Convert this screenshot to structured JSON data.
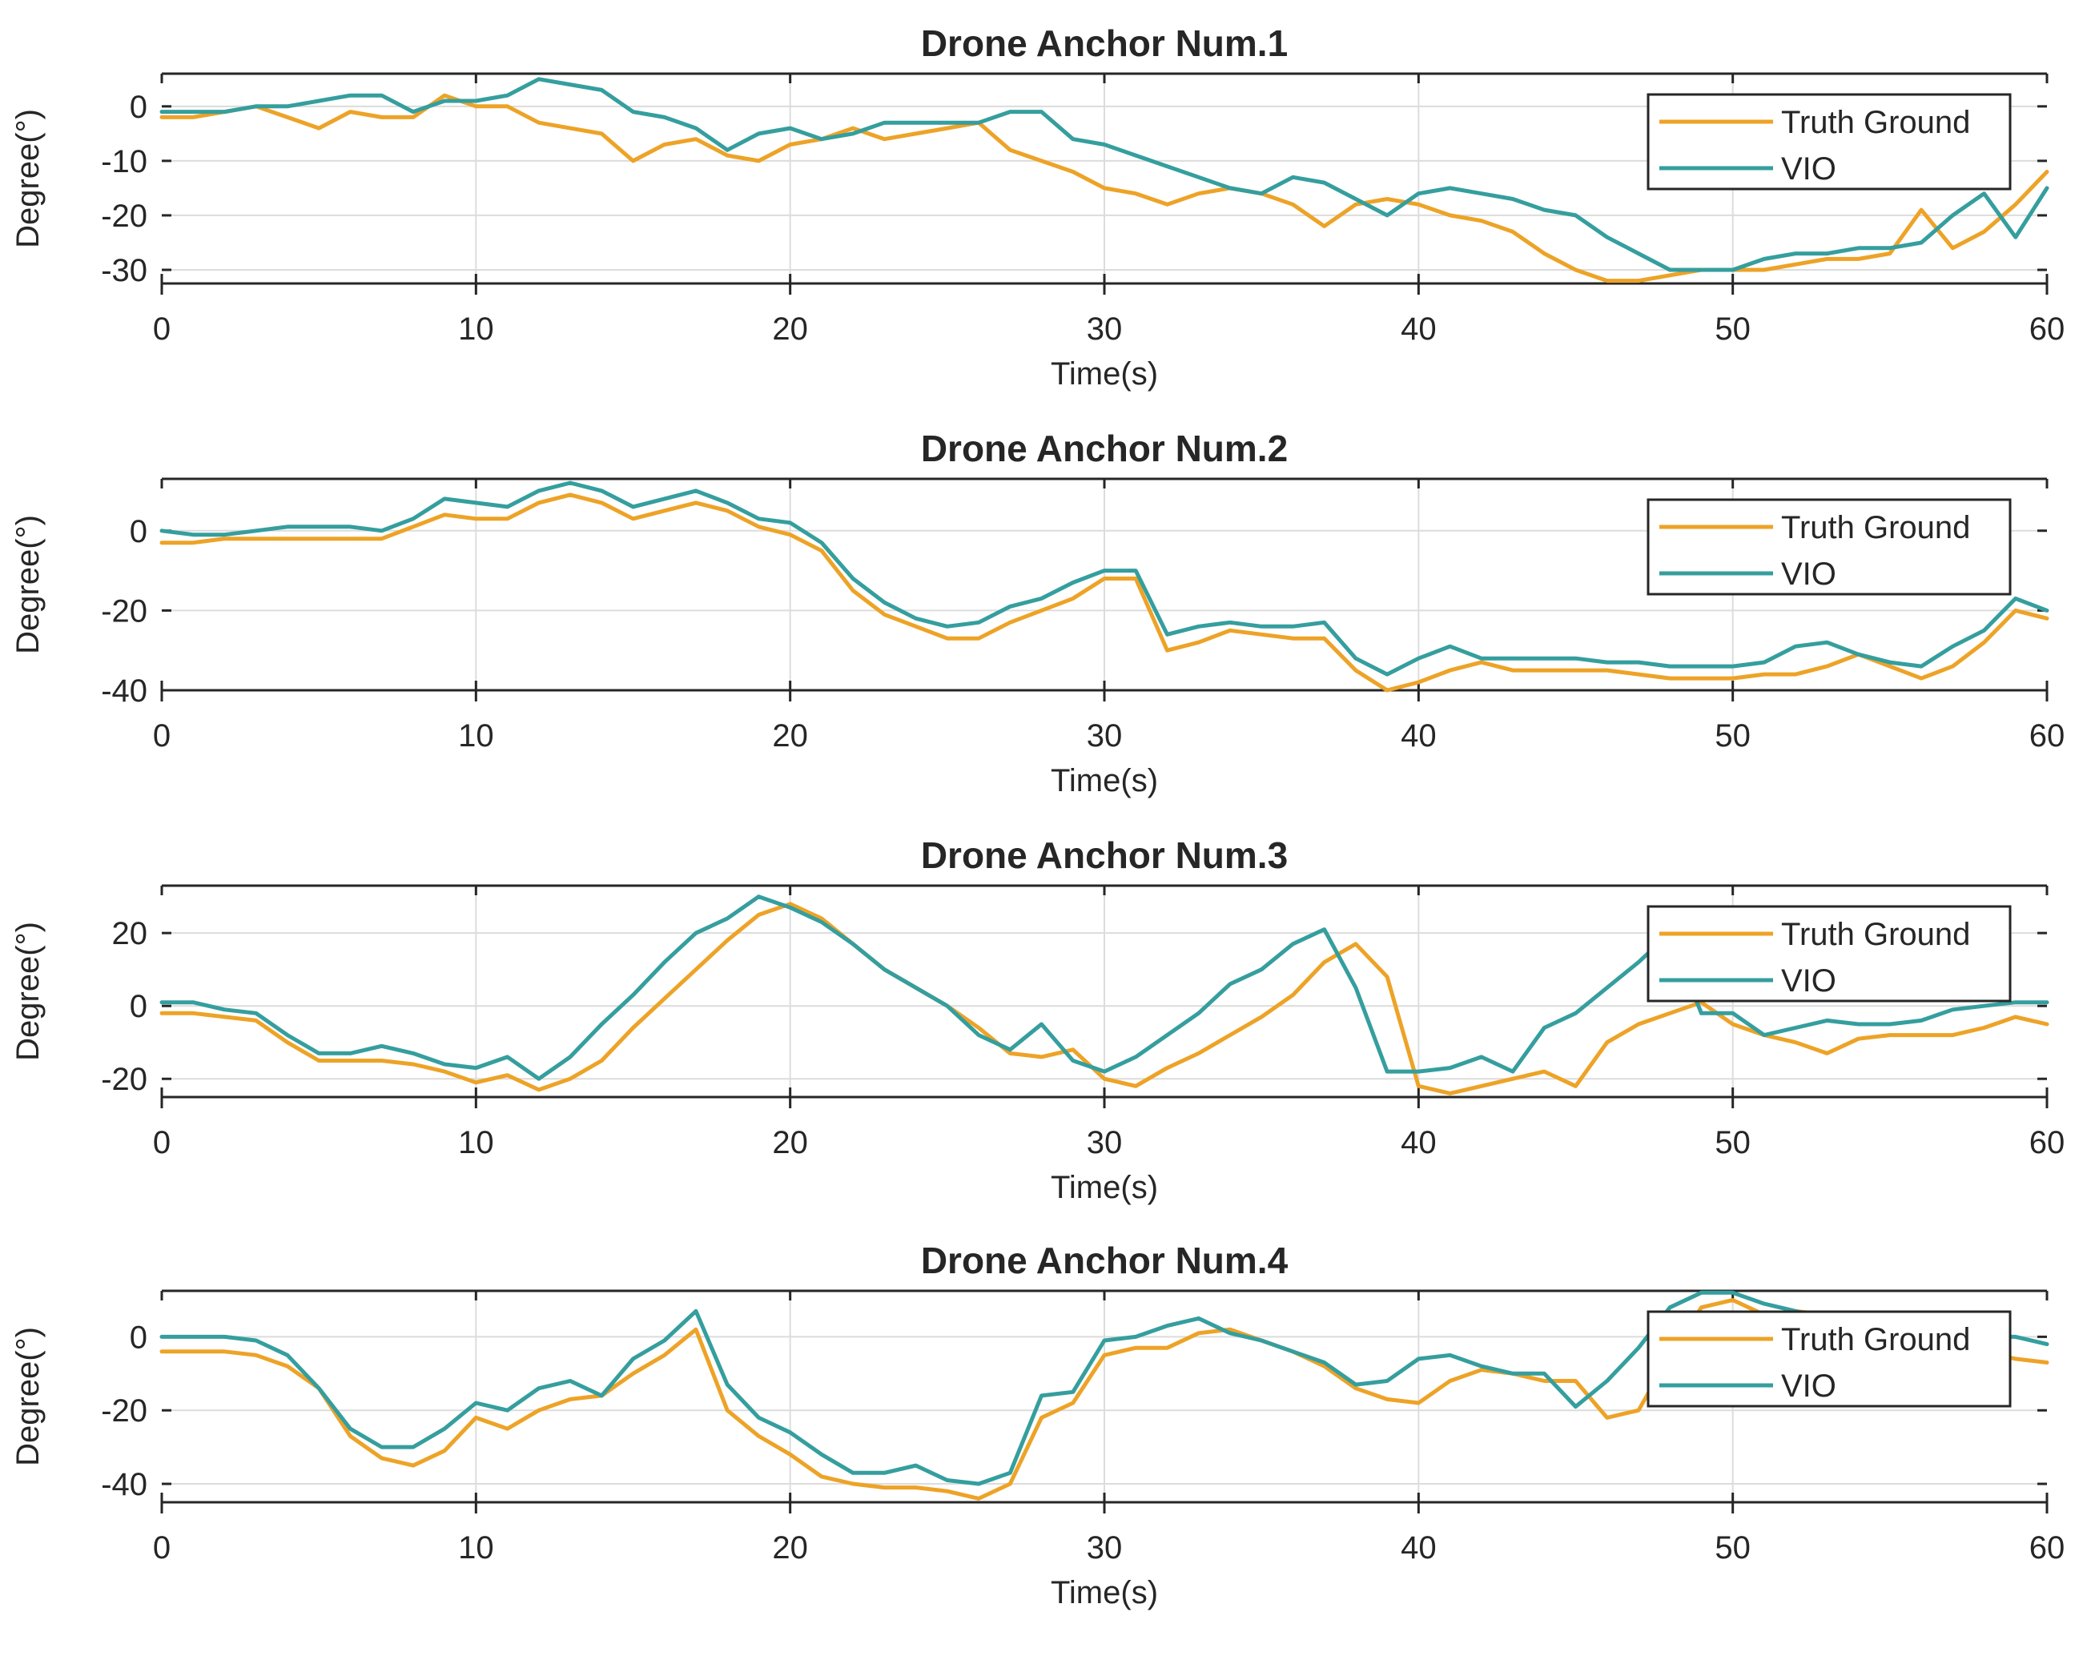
{
  "colors": {
    "truth": "#EDA327",
    "vio": "#359E9E",
    "axis": "#262626",
    "grid": "#dcdcdc"
  },
  "chart_data": [
    {
      "type": "line",
      "title": "Drone Anchor Num.1",
      "xlabel": "Time(s)",
      "ylabel": "Degree(°)",
      "xlim": [
        0,
        60
      ],
      "ylim": [
        -32.5,
        6
      ],
      "xticks": [
        0,
        10,
        20,
        30,
        40,
        50,
        60
      ],
      "xtick_labels": [
        "0",
        "10",
        "20",
        "30",
        "40",
        "50",
        "60"
      ],
      "yticks": [
        0,
        -10,
        -20,
        -30
      ],
      "ytick_labels": [
        "0",
        "-10",
        "-20",
        "-30"
      ],
      "grid": true,
      "legend_position": "top-right",
      "series": [
        {
          "name": "Truth Ground",
          "color": "#EDA327",
          "x": [
            0,
            1,
            2,
            3,
            4,
            5,
            6,
            7,
            8,
            9,
            10,
            11,
            12,
            13,
            14,
            15,
            16,
            17,
            18,
            19,
            20,
            21,
            22,
            23,
            24,
            25,
            26,
            27,
            28,
            29,
            30,
            31,
            32,
            33,
            34,
            35,
            36,
            37,
            38,
            39,
            40,
            41,
            42,
            43,
            44,
            45,
            46,
            47,
            48,
            49,
            50,
            51,
            52,
            53,
            54,
            55,
            56,
            57,
            58,
            59,
            60
          ],
          "y": [
            -2,
            -2,
            -1,
            0,
            -2,
            -4,
            -1,
            -2,
            -2,
            2,
            0,
            0,
            -3,
            -4,
            -5,
            -10,
            -7,
            -6,
            -9,
            -10,
            -7,
            -6,
            -4,
            -6,
            -5,
            -4,
            -3,
            -8,
            -10,
            -12,
            -15,
            -16,
            -18,
            -16,
            -15,
            -16,
            -18,
            -22,
            -18,
            -17,
            -18,
            -20,
            -21,
            -23,
            -27,
            -30,
            -32,
            -32,
            -31,
            -30,
            -30,
            -30,
            -29,
            -28,
            -28,
            -27,
            -19,
            -26,
            -23,
            -18,
            -12
          ]
        },
        {
          "name": "VIO",
          "color": "#359E9E",
          "x": [
            0,
            1,
            2,
            3,
            4,
            5,
            6,
            7,
            8,
            9,
            10,
            11,
            12,
            13,
            14,
            15,
            16,
            17,
            18,
            19,
            20,
            21,
            22,
            23,
            24,
            25,
            26,
            27,
            28,
            29,
            30,
            31,
            32,
            33,
            34,
            35,
            36,
            37,
            38,
            39,
            40,
            41,
            42,
            43,
            44,
            45,
            46,
            47,
            48,
            49,
            50,
            51,
            52,
            53,
            54,
            55,
            56,
            57,
            58,
            59,
            60
          ],
          "y": [
            -1,
            -1,
            -1,
            0,
            0,
            1,
            2,
            2,
            -1,
            1,
            1,
            2,
            5,
            4,
            3,
            -1,
            -2,
            -4,
            -8,
            -5,
            -4,
            -6,
            -5,
            -3,
            -3,
            -3,
            -3,
            -1,
            -1,
            -6,
            -7,
            -9,
            -11,
            -13,
            -15,
            -16,
            -13,
            -14,
            -17,
            -20,
            -16,
            -15,
            -16,
            -17,
            -19,
            -20,
            -24,
            -27,
            -30,
            -30,
            -30,
            -28,
            -27,
            -27,
            -26,
            -26,
            -25,
            -20,
            -16,
            -24,
            -15
          ]
        }
      ]
    },
    {
      "type": "line",
      "title": "Drone Anchor Num.2",
      "xlabel": "Time(s)",
      "ylabel": "Degree(°)",
      "xlim": [
        0,
        60
      ],
      "ylim": [
        -40,
        13
      ],
      "xticks": [
        0,
        10,
        20,
        30,
        40,
        50,
        60
      ],
      "xtick_labels": [
        "0",
        "10",
        "20",
        "30",
        "40",
        "50",
        "60"
      ],
      "yticks": [
        0,
        -20,
        -40
      ],
      "ytick_labels": [
        "0",
        "-20",
        "-40"
      ],
      "grid": true,
      "legend_position": "top-right",
      "series": [
        {
          "name": "Truth Ground",
          "color": "#EDA327",
          "x": [
            0,
            1,
            2,
            3,
            4,
            5,
            6,
            7,
            8,
            9,
            10,
            11,
            12,
            13,
            14,
            15,
            16,
            17,
            18,
            19,
            20,
            21,
            22,
            23,
            24,
            25,
            26,
            27,
            28,
            29,
            30,
            31,
            32,
            33,
            34,
            35,
            36,
            37,
            38,
            39,
            40,
            41,
            42,
            43,
            44,
            45,
            46,
            47,
            48,
            49,
            50,
            51,
            52,
            53,
            54,
            55,
            56,
            57,
            58,
            59,
            60
          ],
          "y": [
            -3,
            -3,
            -2,
            -2,
            -2,
            -2,
            -2,
            -2,
            1,
            4,
            3,
            3,
            7,
            9,
            7,
            3,
            5,
            7,
            5,
            1,
            -1,
            -5,
            -15,
            -21,
            -24,
            -27,
            -27,
            -23,
            -20,
            -17,
            -12,
            -12,
            -30,
            -28,
            -25,
            -26,
            -27,
            -27,
            -35,
            -40,
            -38,
            -35,
            -33,
            -35,
            -35,
            -35,
            -35,
            -36,
            -37,
            -37,
            -37,
            -36,
            -36,
            -34,
            -31,
            -34,
            -37,
            -34,
            -28,
            -20,
            -22
          ]
        },
        {
          "name": "VIO",
          "color": "#359E9E",
          "x": [
            0,
            1,
            2,
            3,
            4,
            5,
            6,
            7,
            8,
            9,
            10,
            11,
            12,
            13,
            14,
            15,
            16,
            17,
            18,
            19,
            20,
            21,
            22,
            23,
            24,
            25,
            26,
            27,
            28,
            29,
            30,
            31,
            32,
            33,
            34,
            35,
            36,
            37,
            38,
            39,
            40,
            41,
            42,
            43,
            44,
            45,
            46,
            47,
            48,
            49,
            50,
            51,
            52,
            53,
            54,
            55,
            56,
            57,
            58,
            59,
            60
          ],
          "y": [
            0,
            -1,
            -1,
            0,
            1,
            1,
            1,
            0,
            3,
            8,
            7,
            6,
            10,
            12,
            10,
            6,
            8,
            10,
            7,
            3,
            2,
            -3,
            -12,
            -18,
            -22,
            -24,
            -23,
            -19,
            -17,
            -13,
            -10,
            -10,
            -26,
            -24,
            -23,
            -24,
            -24,
            -23,
            -32,
            -36,
            -32,
            -29,
            -32,
            -32,
            -32,
            -32,
            -33,
            -33,
            -34,
            -34,
            -34,
            -33,
            -29,
            -28,
            -31,
            -33,
            -34,
            -29,
            -25,
            -17,
            -20
          ]
        }
      ]
    },
    {
      "type": "line",
      "title": "Drone Anchor Num.3",
      "xlabel": "Time(s)",
      "ylabel": "Degree(°)",
      "xlim": [
        0,
        60
      ],
      "ylim": [
        -25,
        33
      ],
      "xticks": [
        0,
        10,
        20,
        30,
        40,
        50,
        60
      ],
      "xtick_labels": [
        "0",
        "10",
        "20",
        "30",
        "40",
        "50",
        "60"
      ],
      "yticks": [
        20,
        0,
        -20
      ],
      "ytick_labels": [
        "20",
        "0",
        "-20"
      ],
      "grid": true,
      "legend_position": "top-right",
      "series": [
        {
          "name": "Truth Ground",
          "color": "#EDA327",
          "x": [
            0,
            1,
            2,
            3,
            4,
            5,
            6,
            7,
            8,
            9,
            10,
            11,
            12,
            13,
            14,
            15,
            16,
            17,
            18,
            19,
            20,
            21,
            22,
            23,
            24,
            25,
            26,
            27,
            28,
            29,
            30,
            31,
            32,
            33,
            34,
            35,
            36,
            37,
            38,
            39,
            40,
            41,
            42,
            43,
            44,
            45,
            46,
            47,
            48,
            49,
            50,
            51,
            52,
            53,
            54,
            55,
            56,
            57,
            58,
            59,
            60
          ],
          "y": [
            -2,
            -2,
            -3,
            -4,
            -10,
            -15,
            -15,
            -15,
            -16,
            -18,
            -21,
            -19,
            -23,
            -20,
            -15,
            -6,
            2,
            10,
            18,
            25,
            28,
            24,
            17,
            10,
            5,
            0,
            -6,
            -13,
            -14,
            -12,
            -20,
            -22,
            -17,
            -13,
            -8,
            -3,
            3,
            12,
            17,
            8,
            -22,
            -24,
            -22,
            -20,
            -18,
            -22,
            -10,
            -5,
            -2,
            1,
            -5,
            -8,
            -10,
            -13,
            -9,
            -8,
            -8,
            -8,
            -6,
            -3,
            -5
          ]
        },
        {
          "name": "VIO",
          "color": "#359E9E",
          "x": [
            0,
            1,
            2,
            3,
            4,
            5,
            6,
            7,
            8,
            9,
            10,
            11,
            12,
            13,
            14,
            15,
            16,
            17,
            18,
            19,
            20,
            21,
            22,
            23,
            24,
            25,
            26,
            27,
            28,
            29,
            30,
            31,
            32,
            33,
            34,
            35,
            36,
            37,
            38,
            39,
            40,
            41,
            42,
            43,
            44,
            45,
            46,
            47,
            48,
            49,
            50,
            51,
            52,
            53,
            54,
            55,
            56,
            57,
            58,
            59,
            60
          ],
          "y": [
            1,
            1,
            -1,
            -2,
            -8,
            -13,
            -13,
            -11,
            -13,
            -16,
            -17,
            -14,
            -20,
            -14,
            -5,
            3,
            12,
            20,
            24,
            30,
            27,
            23,
            17,
            10,
            5,
            0,
            -8,
            -12,
            -5,
            -15,
            -18,
            -14,
            -8,
            -2,
            6,
            10,
            17,
            21,
            5,
            -18,
            -18,
            -17,
            -14,
            -18,
            -6,
            -2,
            5,
            12,
            20,
            -2,
            -2,
            -8,
            -6,
            -4,
            -5,
            -5,
            -4,
            -1,
            0,
            1,
            1
          ]
        }
      ]
    },
    {
      "type": "line",
      "title": "Drone Anchor Num.4",
      "xlabel": "Time(s)",
      "ylabel": "Degree(°)",
      "xlim": [
        0,
        60
      ],
      "ylim": [
        -45,
        12.5
      ],
      "xticks": [
        0,
        10,
        20,
        30,
        40,
        50,
        60
      ],
      "xtick_labels": [
        "0",
        "10",
        "20",
        "30",
        "40",
        "50",
        "60"
      ],
      "yticks": [
        0,
        -20,
        -40
      ],
      "ytick_labels": [
        "0",
        "-20",
        "-40"
      ],
      "grid": true,
      "legend_position": "top-right",
      "series": [
        {
          "name": "Truth Ground",
          "color": "#EDA327",
          "x": [
            0,
            1,
            2,
            3,
            4,
            5,
            6,
            7,
            8,
            9,
            10,
            11,
            12,
            13,
            14,
            15,
            16,
            17,
            18,
            19,
            20,
            21,
            22,
            23,
            24,
            25,
            26,
            27,
            28,
            29,
            30,
            31,
            32,
            33,
            34,
            35,
            36,
            37,
            38,
            39,
            40,
            41,
            42,
            43,
            44,
            45,
            46,
            47,
            48,
            49,
            50,
            51,
            52,
            53,
            54,
            55,
            56,
            57,
            58,
            59,
            60
          ],
          "y": [
            -4,
            -4,
            -4,
            -5,
            -8,
            -14,
            -27,
            -33,
            -35,
            -31,
            -22,
            -25,
            -20,
            -17,
            -16,
            -10,
            -5,
            2,
            -20,
            -27,
            -32,
            -38,
            -40,
            -41,
            -41,
            -42,
            -44,
            -40,
            -22,
            -18,
            -5,
            -3,
            -3,
            1,
            2,
            -1,
            -4,
            -8,
            -14,
            -17,
            -18,
            -12,
            -9,
            -10,
            -12,
            -12,
            -22,
            -20,
            -5,
            8,
            10,
            6,
            7,
            6,
            4,
            2,
            0,
            -2,
            -4,
            -6,
            -7
          ]
        },
        {
          "name": "VIO",
          "color": "#359E9E",
          "x": [
            0,
            1,
            2,
            3,
            4,
            5,
            6,
            7,
            8,
            9,
            10,
            11,
            12,
            13,
            14,
            15,
            16,
            17,
            18,
            19,
            20,
            21,
            22,
            23,
            24,
            25,
            26,
            27,
            28,
            29,
            30,
            31,
            32,
            33,
            34,
            35,
            36,
            37,
            38,
            39,
            40,
            41,
            42,
            43,
            44,
            45,
            46,
            47,
            48,
            49,
            50,
            51,
            52,
            53,
            54,
            55,
            56,
            57,
            58,
            59,
            60
          ],
          "y": [
            0,
            0,
            0,
            -1,
            -5,
            -14,
            -25,
            -30,
            -30,
            -25,
            -18,
            -20,
            -14,
            -12,
            -16,
            -6,
            -1,
            7,
            -13,
            -22,
            -26,
            -32,
            -37,
            -37,
            -35,
            -39,
            -40,
            -37,
            -16,
            -15,
            -1,
            0,
            3,
            5,
            1,
            -1,
            -4,
            -7,
            -13,
            -12,
            -6,
            -5,
            -8,
            -10,
            -10,
            -19,
            -12,
            -3,
            8,
            12,
            12,
            9,
            7,
            5,
            3,
            2,
            1,
            1,
            0,
            0,
            -2
          ]
        }
      ]
    }
  ]
}
